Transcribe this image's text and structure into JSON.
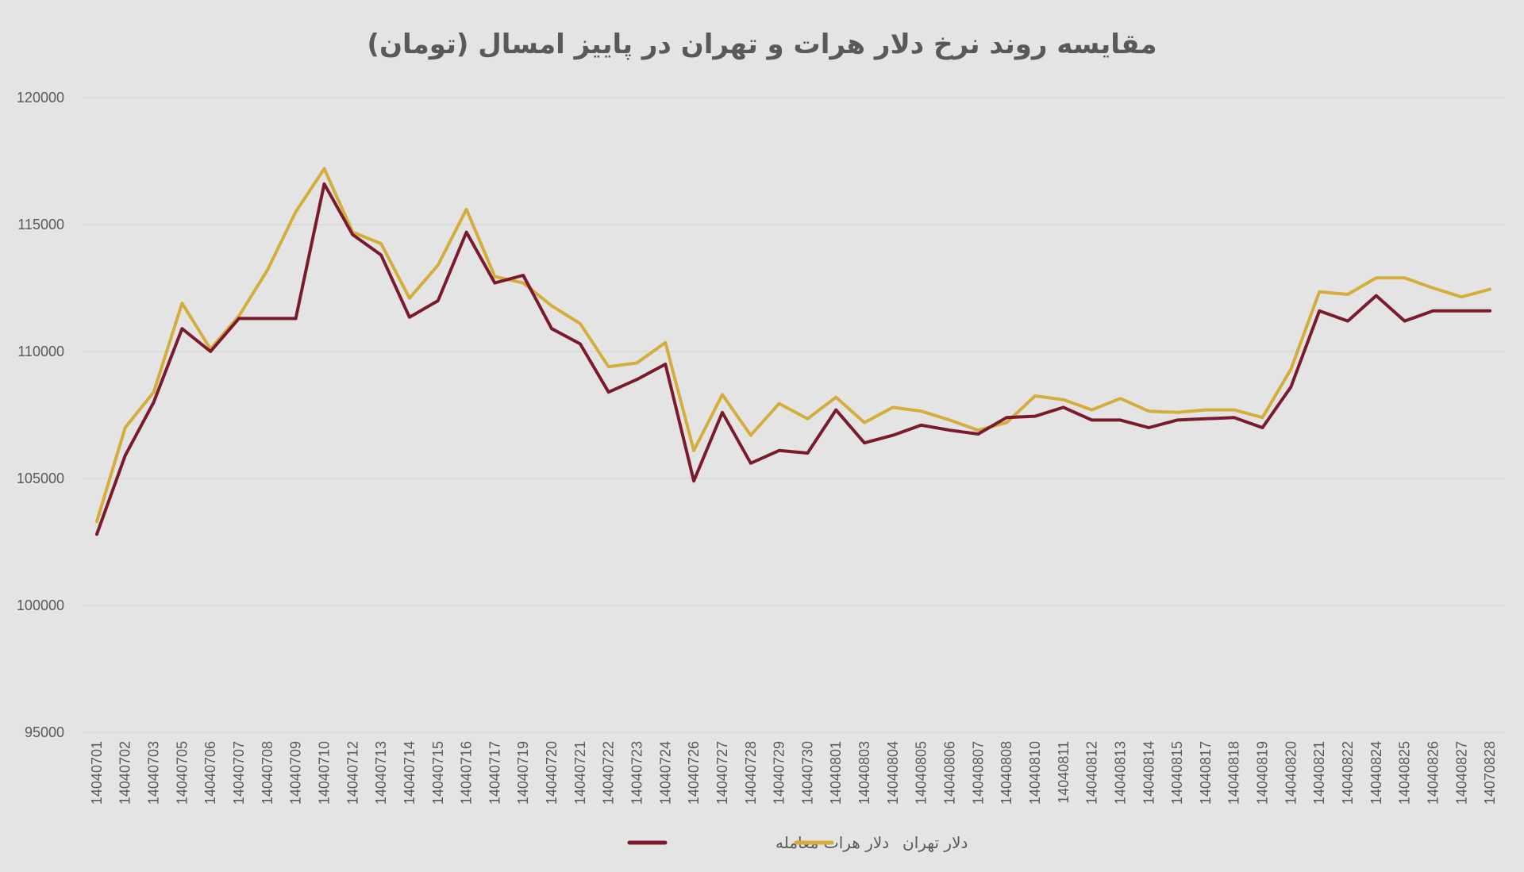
{
  "chart_data": {
    "type": "line",
    "title": "مقایسه روند نرخ دلار هرات و تهران در پاییز امسال (تومان)",
    "xlabel": "",
    "ylabel": "",
    "ylim": [
      95000,
      120000
    ],
    "yticks": [
      95000,
      100000,
      105000,
      110000,
      115000,
      120000
    ],
    "grid": true,
    "legend_position": "bottom",
    "categories": [
      "14040701",
      "14040702",
      "14040703",
      "14040705",
      "14040706",
      "14040707",
      "14040708",
      "14040709",
      "14040710",
      "14040712",
      "14040713",
      "14040714",
      "14040715",
      "14040716",
      "14040717",
      "14040719",
      "14040720",
      "14040721",
      "14040722",
      "14040723",
      "14040724",
      "14040726",
      "14040727",
      "14040728",
      "14040729",
      "14040730",
      "14040801",
      "14040803",
      "14040804",
      "14040805",
      "14040806",
      "14040807",
      "14040808",
      "14040810",
      "14040811",
      "14040812",
      "14040813",
      "14040814",
      "14040815",
      "14040817",
      "14040818",
      "14040819",
      "14040820",
      "14040821",
      "14040822",
      "14040824",
      "14040825",
      "14040826",
      "14040827",
      "14070828"
    ],
    "series": [
      {
        "name": "دلار هرات معامله",
        "color": "#7b1a2c",
        "values": [
          102800,
          105900,
          108000,
          110900,
          110000,
          111300,
          111300,
          111300,
          116600,
          114600,
          113800,
          111350,
          112000,
          114700,
          112700,
          113000,
          110900,
          110300,
          108400,
          108900,
          109500,
          104900,
          107600,
          105600,
          106100,
          106000,
          107700,
          106400,
          106700,
          107100,
          106900,
          106750,
          107400,
          107450,
          107800,
          107300,
          107300,
          107000,
          107300,
          107350,
          107400,
          107000,
          108600,
          111600,
          111200,
          112200,
          111200,
          111600,
          111600,
          111600
        ]
      },
      {
        "name": "دلار تهران",
        "color": "#d4ad3c",
        "values": [
          103300,
          107000,
          108400,
          111900,
          110100,
          111400,
          113200,
          115500,
          117200,
          114700,
          114250,
          112100,
          113400,
          115600,
          112950,
          112700,
          111800,
          111100,
          109400,
          109550,
          110350,
          106100,
          108300,
          106700,
          107950,
          107350,
          108200,
          107200,
          107800,
          107650,
          107300,
          106900,
          107200,
          108250,
          108100,
          107700,
          108150,
          107650,
          107600,
          107700,
          107700,
          107400,
          109300,
          112350,
          112250,
          112900,
          112900,
          112500,
          112150,
          112450
        ]
      }
    ]
  }
}
